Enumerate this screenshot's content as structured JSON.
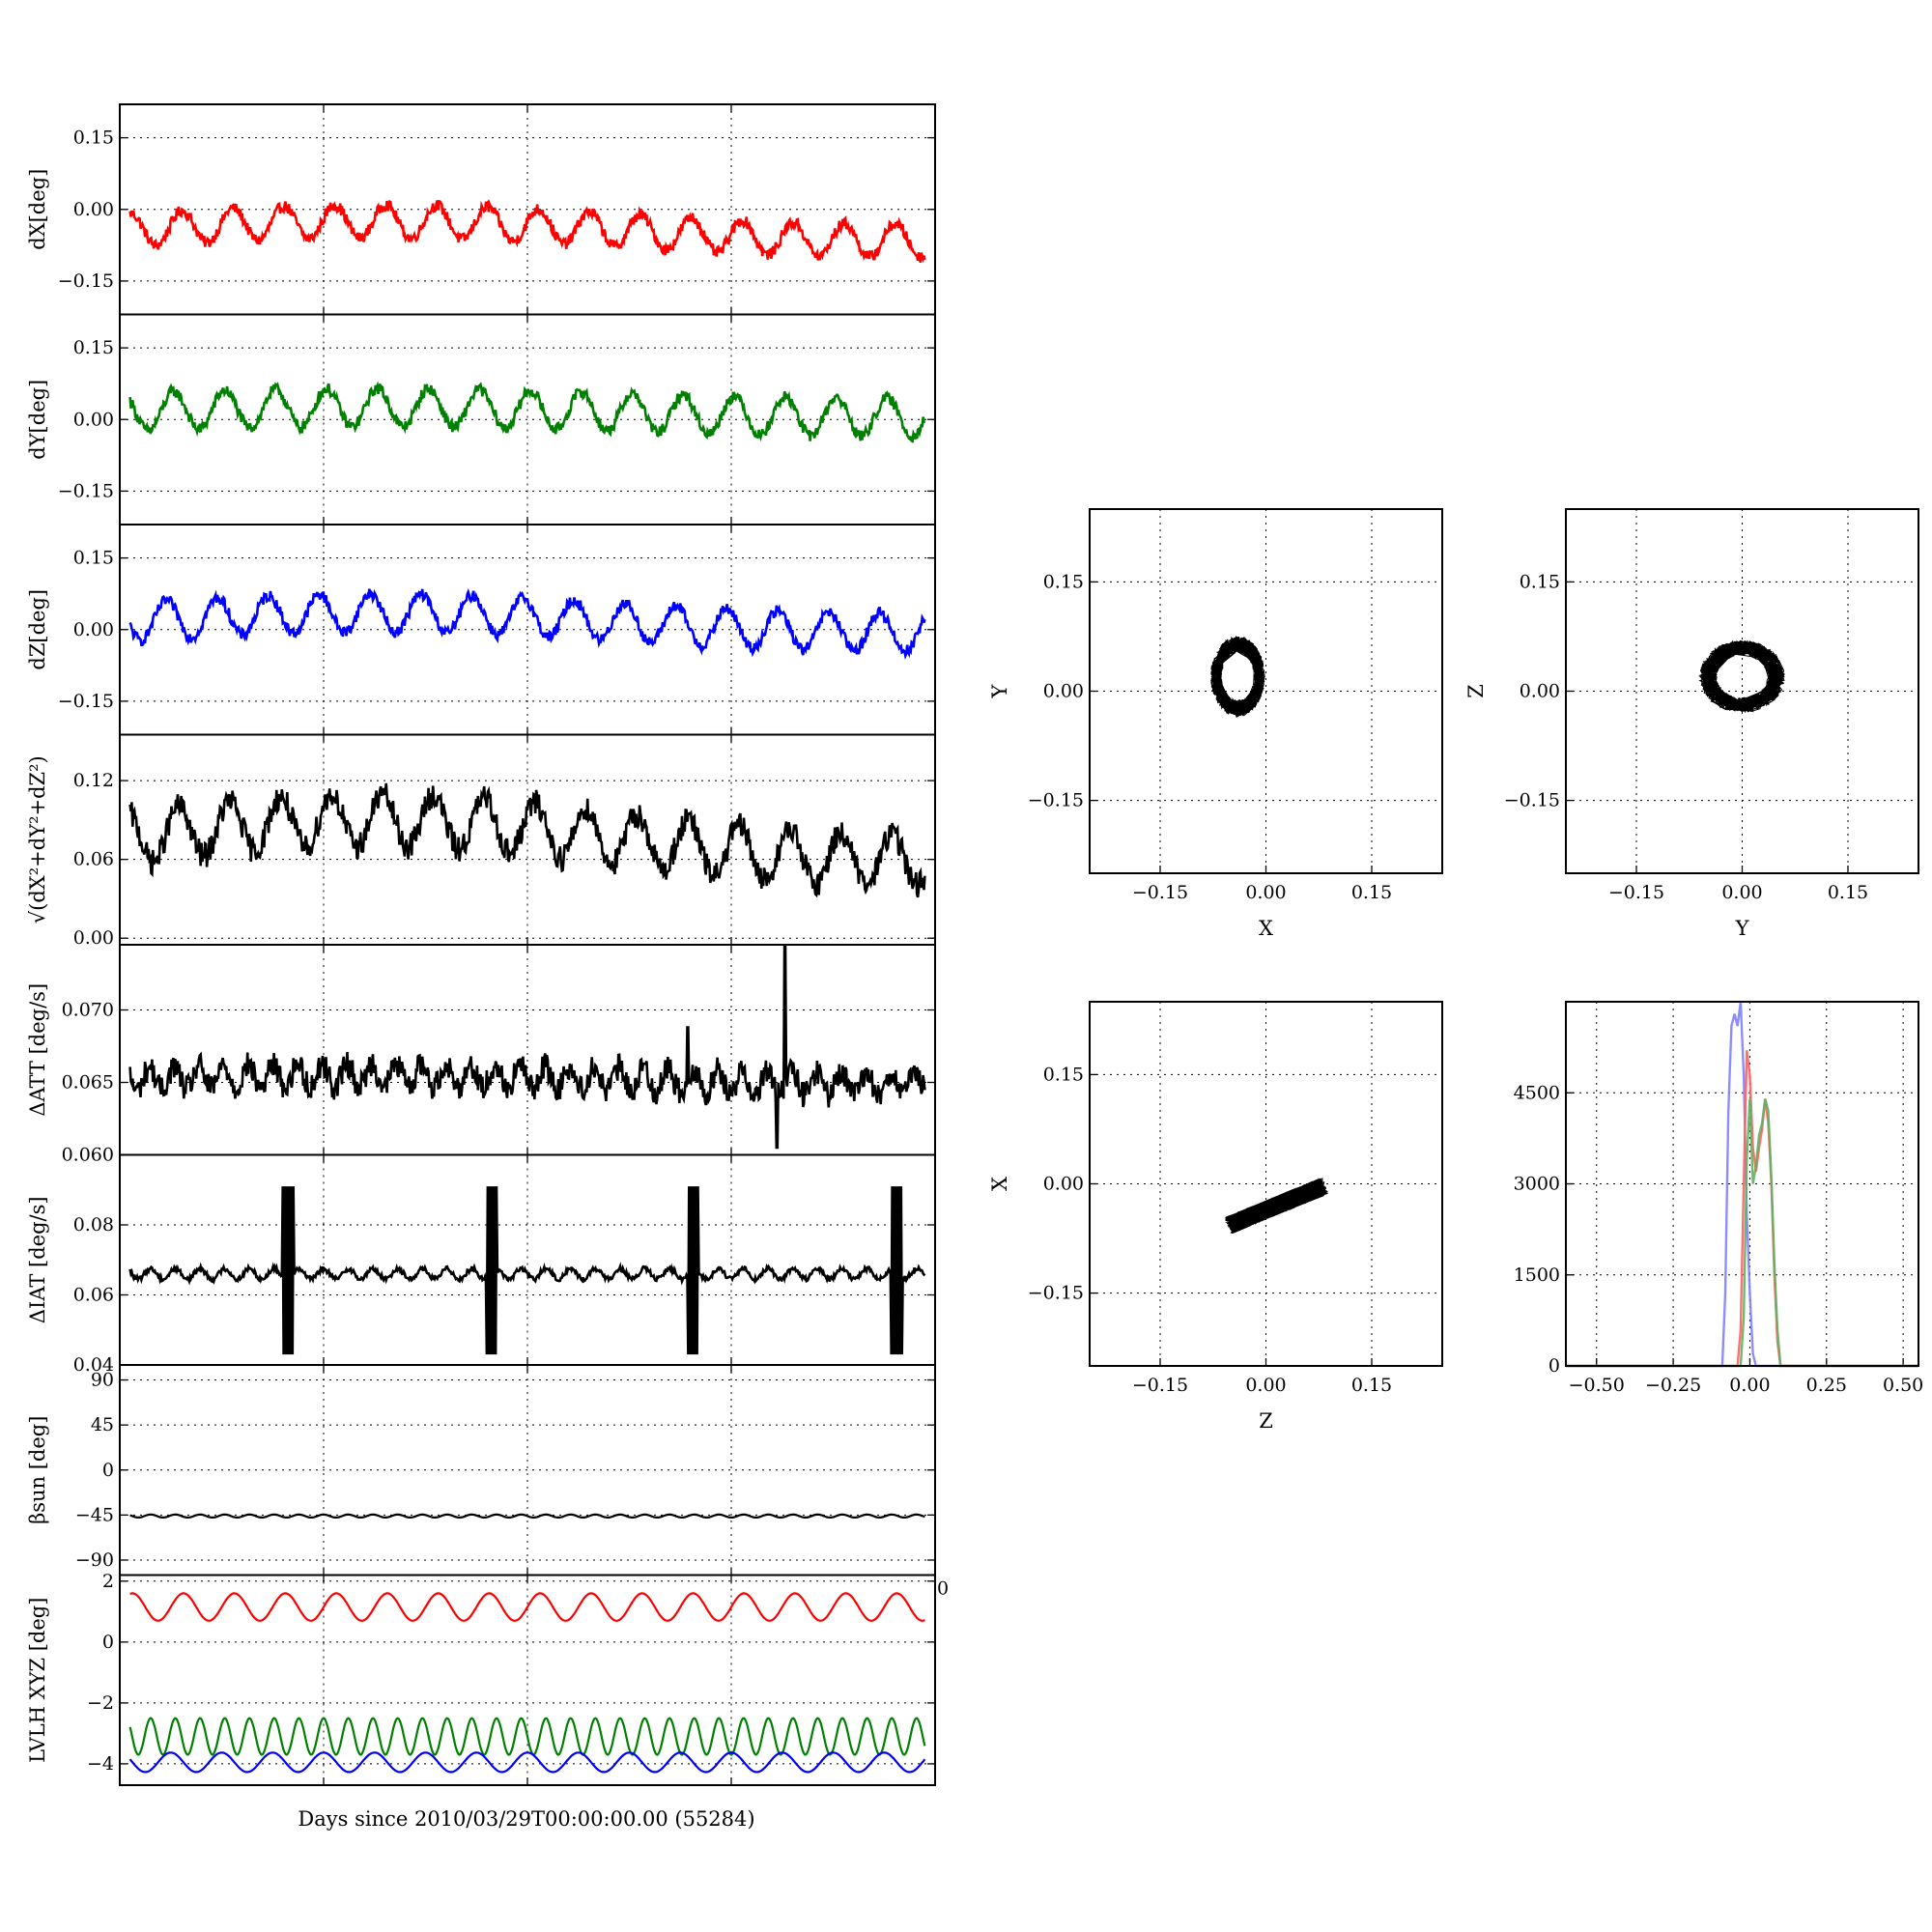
{
  "figure": {
    "xlabel": "Days since 2010/03/29T00:00:00.00 (55284)"
  },
  "chart_data": [
    {
      "id": "dX",
      "type": "line",
      "ylabel": "dX[deg]",
      "ylim": [
        -0.22,
        0.22
      ],
      "yticks": [
        -0.15,
        0.0,
        0.15
      ],
      "ytick_labels": [
        "−0.15",
        "0.00",
        "0.15"
      ],
      "xlim": [
        0,
        32
      ],
      "grid": true,
      "series": [
        {
          "color": "#ff0000",
          "wave": {
            "mean": -0.045,
            "amp": 0.035,
            "cycles": 16,
            "phase": 0.2,
            "noise": 0.012,
            "trend": [
              0.0,
              0.02,
              0.0
            ]
          }
        }
      ]
    },
    {
      "id": "dY",
      "type": "line",
      "ylabel": "dY[deg]",
      "ylim": [
        -0.22,
        0.22
      ],
      "yticks": [
        -0.15,
        0.0,
        0.15
      ],
      "ytick_labels": [
        "−0.15",
        "0.00",
        "0.15"
      ],
      "xlim": [
        0,
        32
      ],
      "grid": true,
      "series": [
        {
          "color": "#008000",
          "wave": {
            "mean": 0.015,
            "amp": 0.04,
            "cycles": 16,
            "phase": 1.2,
            "noise": 0.012,
            "trend": [
              0.0,
              0.01,
              0.0
            ]
          }
        }
      ]
    },
    {
      "id": "dZ",
      "type": "line",
      "ylabel": "dZ[deg]",
      "ylim": [
        -0.22,
        0.22
      ],
      "yticks": [
        -0.15,
        0.0,
        0.15
      ],
      "ytick_labels": [
        "−0.15",
        "0.00",
        "0.15"
      ],
      "xlim": [
        0,
        32
      ],
      "grid": true,
      "series": [
        {
          "color": "#0000ff",
          "wave": {
            "mean": 0.015,
            "amp": 0.04,
            "cycles": 16,
            "phase": 2.1,
            "noise": 0.012,
            "trend": [
              0.0,
              0.02,
              0.0
            ]
          }
        }
      ]
    },
    {
      "id": "dR",
      "type": "line",
      "ylabel": "√(dX²+dY²+dZ²)",
      "ylim": [
        -0.005,
        0.155
      ],
      "yticks": [
        0.0,
        0.06,
        0.12
      ],
      "ytick_labels": [
        "0.00",
        "0.06",
        "0.12"
      ],
      "xlim": [
        0,
        32
      ],
      "grid": true,
      "series": [
        {
          "color": "#000000",
          "wave": {
            "mean": 0.075,
            "amp": 0.02,
            "cycles": 16,
            "phase": 0.6,
            "noise": 0.01,
            "trend": [
              0.0,
              0.015,
              0.0
            ]
          }
        }
      ]
    },
    {
      "id": "dATT",
      "type": "line",
      "ylabel": "ΔATT [deg/s]",
      "ylim": [
        0.06,
        0.0745
      ],
      "yticks": [
        0.065,
        0.07
      ],
      "ytick_labels": [
        "0.065",
        "0.070"
      ],
      "extra_bottom_label": "0.060",
      "xlim": [
        0,
        32
      ],
      "grid": true,
      "series": [
        {
          "color": "#000000",
          "wave": {
            "mean": 0.0652,
            "amp": 0.0008,
            "cycles": 33,
            "phase": 0.3,
            "noise": 0.0009,
            "trend": [
              0.0,
              0.0003,
              0.0
            ]
          },
          "spikes": [
            {
              "x": 26.1,
              "y": 0.0744
            },
            {
              "x": 25.8,
              "y": 0.0605
            },
            {
              "x": 22.3,
              "y": 0.0688
            }
          ]
        }
      ]
    },
    {
      "id": "dIAT",
      "type": "line",
      "ylabel": "ΔIAT [deg/s]",
      "ylim": [
        0.04,
        0.1
      ],
      "yticks": [
        0.04,
        0.06,
        0.08
      ],
      "ytick_labels": [
        "0.04",
        "0.06",
        "0.08"
      ],
      "xlim": [
        0,
        32
      ],
      "grid": true,
      "series": [
        {
          "color": "#000000",
          "wave": {
            "mean": 0.066,
            "amp": 0.0015,
            "cycles": 33,
            "phase": 0.0,
            "noise": 0.0007,
            "trend": [
              0.0,
              0.0,
              0.0
            ]
          },
          "bursts": [
            6.6,
            14.6,
            22.5,
            30.5
          ]
        }
      ]
    },
    {
      "id": "beta_sun",
      "type": "line",
      "ylabel": "βsun [deg]",
      "ylim": [
        -105,
        105
      ],
      "yticks": [
        -90,
        -45,
        0,
        45,
        90
      ],
      "ytick_labels": [
        "−90",
        "−45",
        "0",
        "45",
        "90"
      ],
      "xlim": [
        0,
        32
      ],
      "grid": true,
      "series": [
        {
          "color": "#000000",
          "wave": {
            "mean": -46,
            "amp": 1.5,
            "cycles": 33,
            "phase": 0.0,
            "noise": 0.0,
            "trend": [
              0.0,
              0.0,
              0.0
            ]
          }
        }
      ]
    },
    {
      "id": "lvlh",
      "type": "line",
      "ylabel": "LVLH XYZ [deg]",
      "ylim": [
        -4.7,
        2.2
      ],
      "yticks": [
        -4,
        -2,
        0,
        2
      ],
      "ytick_labels": [
        "−4",
        "−2",
        "0",
        "2"
      ],
      "extra_right_label": "0",
      "xlim": [
        0,
        32
      ],
      "grid": true,
      "series": [
        {
          "color": "#ff0000",
          "wave": {
            "mean": 1.15,
            "amp": 0.45,
            "cycles": 16,
            "phase": 0.0,
            "noise": 0.0,
            "trend": [
              0.0,
              0.0,
              0.0
            ]
          }
        },
        {
          "color": "#008000",
          "wave": {
            "mean": -3.1,
            "amp": 0.6,
            "cycles": 33,
            "phase": 0.0,
            "noise": 0.0,
            "trend": [
              0.0,
              0.0,
              0.0
            ]
          }
        },
        {
          "color": "#0000ff",
          "wave": {
            "mean": -3.95,
            "amp": 0.32,
            "cycles": 16,
            "phase": 1.57,
            "noise": 0.0,
            "trend": [
              0.0,
              0.0,
              0.0
            ]
          }
        }
      ]
    },
    {
      "id": "XY",
      "type": "scatter",
      "xlabel": "X",
      "ylabel": "Y",
      "xlim": [
        -0.25,
        0.25
      ],
      "ylim": [
        -0.25,
        0.25
      ],
      "ticks": [
        -0.15,
        0.0,
        0.15
      ],
      "tick_labels": [
        "−0.15",
        "0.00",
        "0.15"
      ],
      "grid": true,
      "color": "#000000",
      "cloud": {
        "cx": -0.04,
        "cy": 0.02,
        "rx": 0.035,
        "ry": 0.05,
        "rot": 0
      }
    },
    {
      "id": "YZ",
      "type": "scatter",
      "xlabel": "Y",
      "ylabel": "Z",
      "xlim": [
        -0.25,
        0.25
      ],
      "ylim": [
        -0.25,
        0.25
      ],
      "ticks": [
        -0.15,
        0.0,
        0.15
      ],
      "tick_labels": [
        "−0.15",
        "0.00",
        "0.15"
      ],
      "grid": true,
      "color": "#000000",
      "cloud": {
        "cx": 0.0,
        "cy": 0.02,
        "rx": 0.055,
        "ry": 0.045,
        "rot": 0
      }
    },
    {
      "id": "ZX",
      "type": "scatter",
      "xlabel": "Z",
      "ylabel": "X",
      "xlim": [
        -0.25,
        0.25
      ],
      "ylim": [
        -0.25,
        0.25
      ],
      "ticks": [
        -0.15,
        0.0,
        0.15
      ],
      "tick_labels": [
        "−0.15",
        "0.00",
        "0.15"
      ],
      "grid": true,
      "color": "#000000",
      "cloud": {
        "cx": 0.015,
        "cy": -0.03,
        "rx": 0.075,
        "ry": 0.012,
        "rot": 0.38
      }
    },
    {
      "id": "hist",
      "type": "line",
      "xlim": [
        -0.6,
        0.55
      ],
      "ylim": [
        0,
        6000
      ],
      "xticks": [
        -0.5,
        -0.25,
        0.0,
        0.25,
        0.5
      ],
      "xtick_labels": [
        "−0.50",
        "−0.25",
        "0.00",
        "0.25",
        "0.50"
      ],
      "yticks": [
        0,
        1500,
        3000,
        4500
      ],
      "ytick_labels": [
        "0",
        "1500",
        "3000",
        "4500"
      ],
      "grid": true,
      "series": [
        {
          "color": "#8080ff",
          "x": [
            -0.6,
            -0.09,
            -0.08,
            -0.07,
            -0.06,
            -0.05,
            -0.04,
            -0.03,
            -0.02,
            -0.01,
            0.0,
            0.01,
            0.02,
            0.55
          ],
          "y": [
            0,
            0,
            1200,
            4200,
            5600,
            5800,
            5600,
            6000,
            4800,
            2500,
            1200,
            200,
            0,
            0
          ]
        },
        {
          "color": "#ff6060",
          "x": [
            -0.6,
            -0.04,
            -0.03,
            -0.02,
            -0.01,
            0.0,
            0.01,
            0.02,
            0.03,
            0.04,
            0.05,
            0.06,
            0.07,
            0.08,
            0.09,
            0.1,
            0.55
          ],
          "y": [
            0,
            0,
            600,
            3000,
            5200,
            4800,
            3600,
            3200,
            3600,
            3900,
            4400,
            4000,
            3000,
            1500,
            400,
            0,
            0
          ]
        },
        {
          "color": "#60b060",
          "x": [
            -0.6,
            -0.03,
            -0.02,
            -0.01,
            0.0,
            0.01,
            0.02,
            0.03,
            0.04,
            0.05,
            0.06,
            0.07,
            0.08,
            0.09,
            0.1,
            0.55
          ],
          "y": [
            0,
            0,
            800,
            3400,
            4400,
            3000,
            3300,
            3800,
            4000,
            4400,
            4200,
            3100,
            1700,
            600,
            0,
            0
          ]
        }
      ]
    }
  ]
}
